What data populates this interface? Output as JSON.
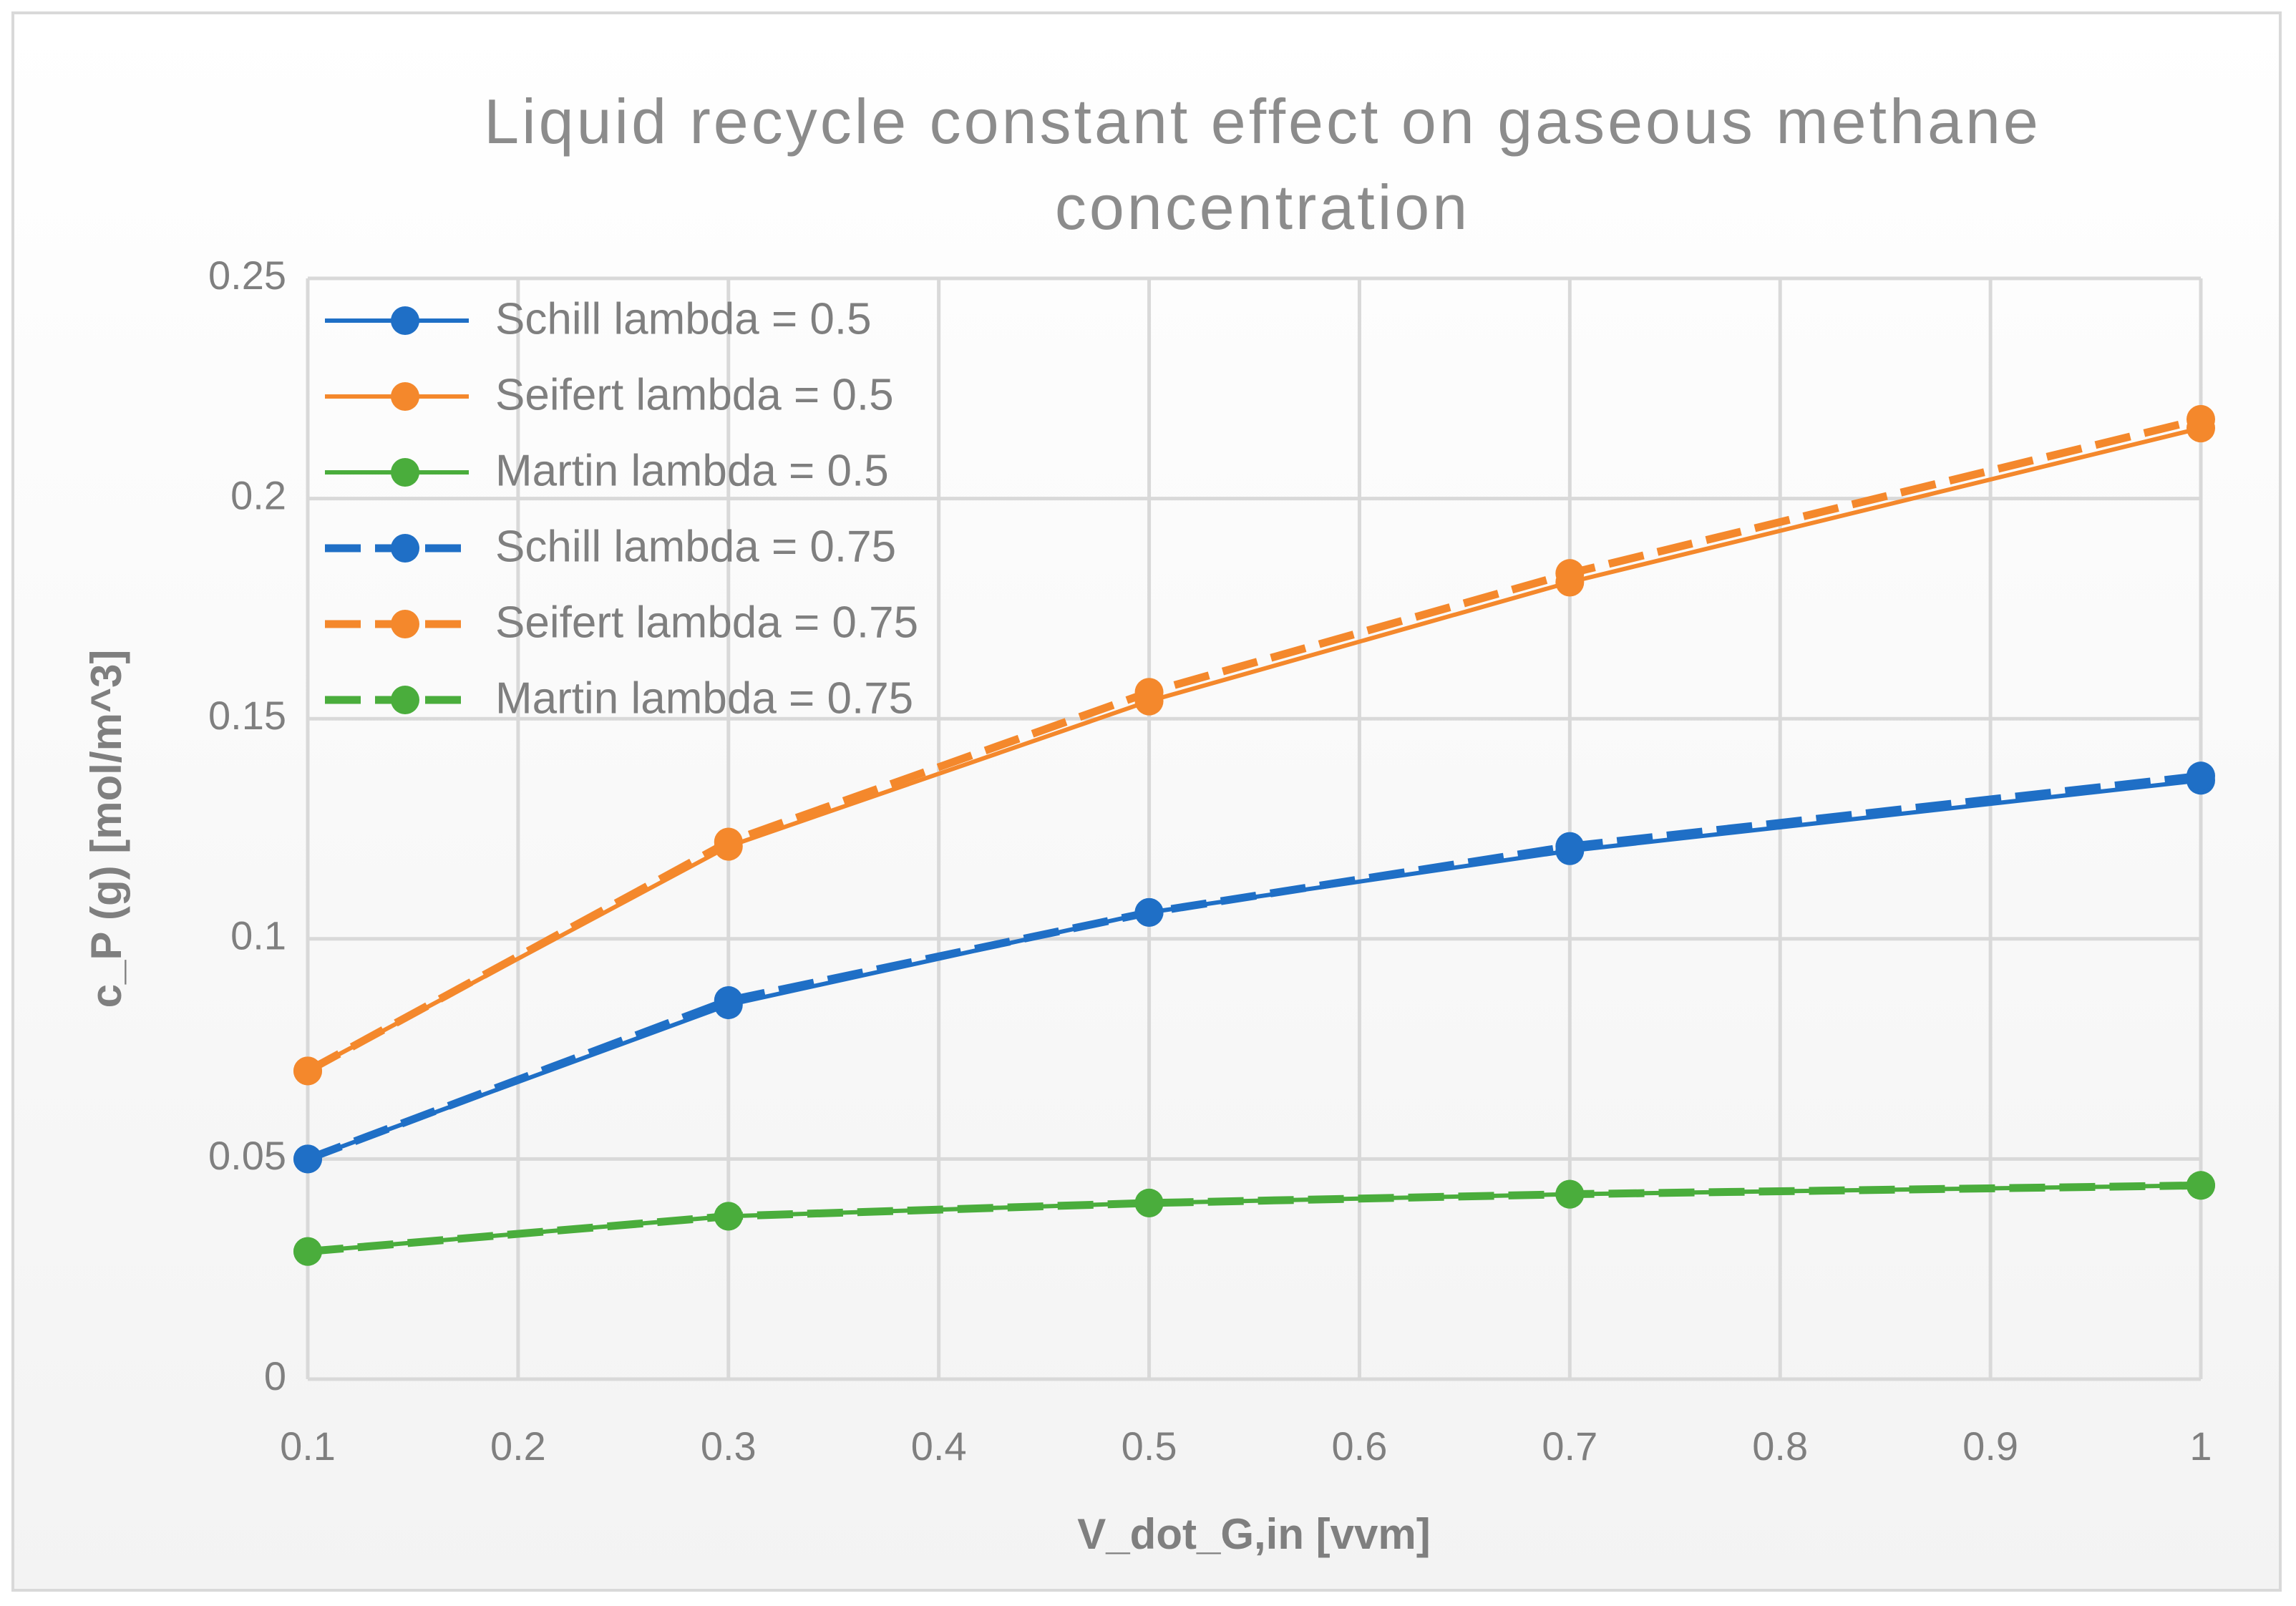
{
  "chart_data": {
    "type": "line",
    "title": "Liquid recycle constant effect on gaseous methane concentration",
    "x_label": "V_dot_G,in [vvm]",
    "y_label": "c_P (g) [mol/m^3]",
    "x": [
      0.1,
      0.3,
      0.5,
      0.7,
      1
    ],
    "xlim": [
      0.1,
      1
    ],
    "xticks": [
      0.1,
      0.2,
      0.3,
      0.4,
      0.5,
      0.6,
      0.7,
      0.8,
      0.9,
      1
    ],
    "ylim": [
      0,
      0.25
    ],
    "yticks": [
      0,
      0.05,
      0.1,
      0.15,
      0.2,
      0.25
    ],
    "grid": true,
    "legend": "upper left",
    "series": [
      {
        "name": "Schill lambda = 0.5",
        "color": "#1f6fc6",
        "line_style": "solid",
        "values": [
          0.05,
          0.085,
          0.106,
          0.12,
          0.136
        ]
      },
      {
        "name": "Seifert lambda = 0.5",
        "color": "#f4882c",
        "line_style": "solid",
        "values": [
          0.07,
          0.121,
          0.154,
          0.181,
          0.216
        ]
      },
      {
        "name": "Martin lambda = 0.5",
        "color": "#4aad3c",
        "line_style": "solid",
        "values": [
          0.029,
          0.037,
          0.04,
          0.042,
          0.044
        ]
      },
      {
        "name": "Schill lambda = 0.75",
        "color": "#1f6fc6",
        "line_style": "dashed",
        "values": [
          0.05,
          0.086,
          0.106,
          0.121,
          0.137
        ]
      },
      {
        "name": "Seifert lambda = 0.75",
        "color": "#f4882c",
        "line_style": "dashed",
        "values": [
          0.07,
          0.122,
          0.156,
          0.183,
          0.218
        ]
      },
      {
        "name": "Martin lambda = 0.75",
        "color": "#4aad3c",
        "line_style": "dashed",
        "values": [
          0.029,
          0.037,
          0.04,
          0.042,
          0.044
        ]
      }
    ]
  }
}
